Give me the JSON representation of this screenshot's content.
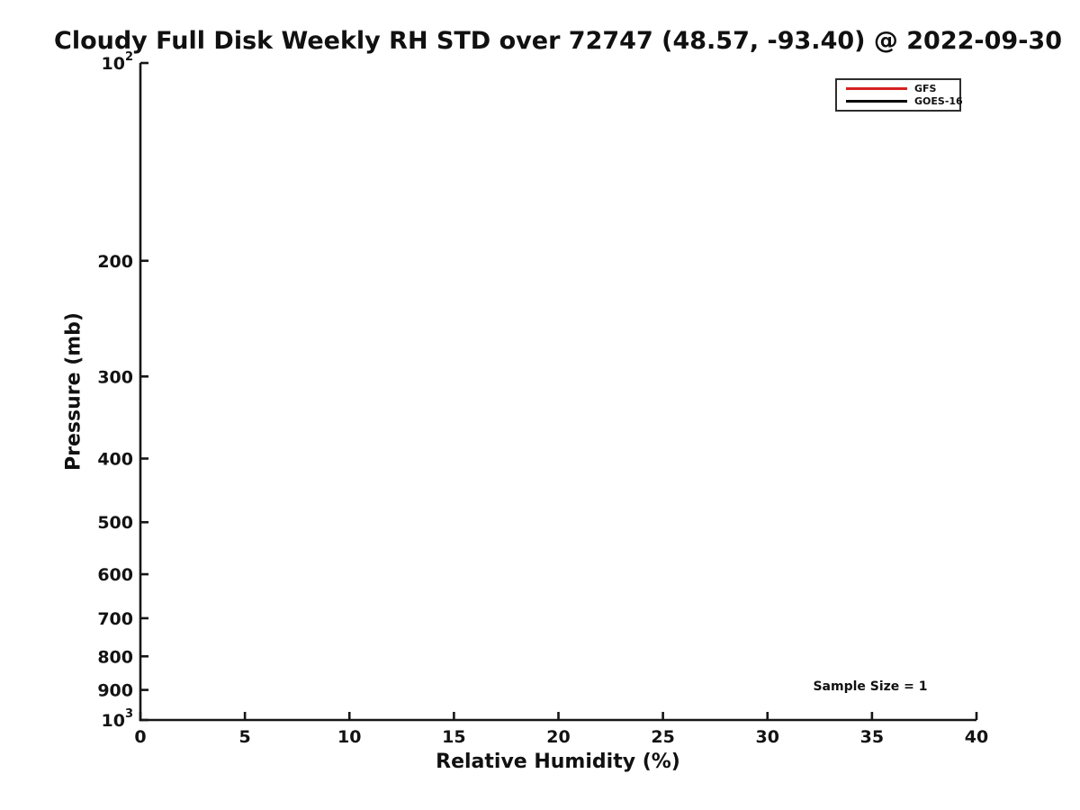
{
  "chart_data": {
    "type": "line",
    "title": "Cloudy Full Disk Weekly RH STD over 72747 (48.57, -93.40) @ 2022-09-30",
    "xlabel": "Relative Humidity (%)",
    "ylabel": "Pressure (mb)",
    "xlim": [
      0,
      40
    ],
    "x_ticks": [
      0,
      5,
      10,
      15,
      20,
      25,
      30,
      35,
      40
    ],
    "yscale": "log",
    "y_axis_top_value": 100,
    "y_axis_bottom_value": 1000,
    "y_ticks": [
      {
        "value": 100,
        "label": "10",
        "exp": "2"
      },
      {
        "value": 200,
        "label": "200"
      },
      {
        "value": 300,
        "label": "300"
      },
      {
        "value": 400,
        "label": "400"
      },
      {
        "value": 500,
        "label": "500"
      },
      {
        "value": 600,
        "label": "600"
      },
      {
        "value": 700,
        "label": "700"
      },
      {
        "value": 800,
        "label": "800"
      },
      {
        "value": 900,
        "label": "900"
      },
      {
        "value": 1000,
        "label": "10",
        "exp": "3"
      }
    ],
    "series": [
      {
        "name": "GFS",
        "color": "#d62021",
        "points": []
      },
      {
        "name": "GOES-16",
        "color": "#000000",
        "points": []
      }
    ],
    "legend_position": "top-right",
    "annotation": "Sample Size = 1",
    "grid": false,
    "axis_color": "#161616",
    "text_color": "#111111",
    "background_color": "#ffffff"
  }
}
